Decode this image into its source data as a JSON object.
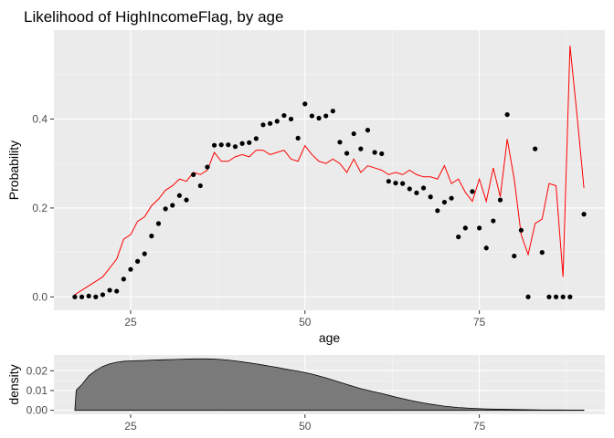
{
  "colors": {
    "panel_bg": "#ebebeb",
    "grid_major": "#ffffff",
    "grid_minor": "#f5f5f5",
    "tick": "#333333",
    "points": "#000000",
    "line": "#ff0000",
    "density_fill": "#7a7a7a",
    "density_stroke": "#000000"
  },
  "chart_data": [
    {
      "type": "scatter",
      "title": "Likelihood of HighIncomeFlag, by age",
      "xlabel": "age",
      "ylabel": "Probability",
      "xlim": [
        14,
        93
      ],
      "ylim": [
        -0.03,
        0.6
      ],
      "x_ticks": [
        25,
        50,
        75
      ],
      "y_ticks": [
        0.0,
        0.2,
        0.4
      ],
      "x_tick_labels": [
        "25",
        "50",
        "75"
      ],
      "y_tick_labels": [
        "0.0",
        "0.2",
        "0.4"
      ],
      "grid": true,
      "series": [
        {
          "kind": "points",
          "x": [
            17,
            18,
            19,
            20,
            21,
            22,
            23,
            24,
            25,
            26,
            27,
            28,
            29,
            30,
            31,
            32,
            33,
            34,
            35,
            36,
            37,
            38,
            39,
            40,
            41,
            42,
            43,
            44,
            45,
            46,
            47,
            48,
            49,
            50,
            51,
            52,
            53,
            54,
            55,
            56,
            57,
            58,
            59,
            60,
            61,
            62,
            63,
            64,
            65,
            66,
            67,
            68,
            69,
            70,
            71,
            72,
            73,
            74,
            75,
            76,
            77,
            78,
            79,
            80,
            81,
            82,
            83,
            84,
            85,
            86,
            87,
            88,
            90
          ],
          "y": [
            0.0,
            0.0,
            0.002,
            0.0,
            0.005,
            0.015,
            0.013,
            0.04,
            0.062,
            0.08,
            0.097,
            0.137,
            0.165,
            0.198,
            0.206,
            0.228,
            0.218,
            0.275,
            0.25,
            0.292,
            0.341,
            0.342,
            0.342,
            0.338,
            0.345,
            0.347,
            0.356,
            0.387,
            0.39,
            0.395,
            0.408,
            0.4,
            0.357,
            0.434,
            0.407,
            0.402,
            0.407,
            0.418,
            0.348,
            0.323,
            0.367,
            0.333,
            0.375,
            0.325,
            0.322,
            0.26,
            0.256,
            0.255,
            0.243,
            0.234,
            0.245,
            0.225,
            0.194,
            0.213,
            0.222,
            0.135,
            0.155,
            0.237,
            0.155,
            0.11,
            0.171,
            0.218,
            0.41,
            0.092,
            0.15,
            0.0,
            0.333,
            0.1,
            0.0,
            0.0,
            0.0,
            0.0,
            0.186
          ]
        },
        {
          "kind": "line",
          "x": [
            17,
            18,
            19,
            20,
            21,
            22,
            23,
            24,
            25,
            26,
            27,
            28,
            29,
            30,
            31,
            32,
            33,
            34,
            35,
            36,
            37,
            38,
            39,
            40,
            41,
            42,
            43,
            44,
            45,
            46,
            47,
            48,
            49,
            50,
            51,
            52,
            53,
            54,
            55,
            56,
            57,
            58,
            59,
            60,
            61,
            62,
            63,
            64,
            65,
            66,
            67,
            68,
            69,
            70,
            71,
            72,
            73,
            74,
            75,
            76,
            77,
            78,
            79,
            80,
            81,
            82,
            83,
            84,
            85,
            86,
            87,
            88,
            89,
            90
          ],
          "y": [
            0.005,
            0.015,
            0.025,
            0.035,
            0.045,
            0.065,
            0.085,
            0.13,
            0.14,
            0.17,
            0.18,
            0.205,
            0.22,
            0.24,
            0.25,
            0.265,
            0.26,
            0.28,
            0.275,
            0.285,
            0.325,
            0.305,
            0.305,
            0.315,
            0.32,
            0.315,
            0.33,
            0.33,
            0.32,
            0.325,
            0.33,
            0.31,
            0.305,
            0.34,
            0.32,
            0.305,
            0.3,
            0.31,
            0.3,
            0.28,
            0.31,
            0.28,
            0.295,
            0.29,
            0.285,
            0.275,
            0.28,
            0.275,
            0.285,
            0.275,
            0.27,
            0.27,
            0.265,
            0.295,
            0.255,
            0.265,
            0.235,
            0.215,
            0.265,
            0.215,
            0.29,
            0.225,
            0.355,
            0.265,
            0.14,
            0.095,
            0.165,
            0.175,
            0.255,
            0.25,
            0.045,
            0.565,
            0.41,
            0.245
          ]
        }
      ]
    },
    {
      "type": "area",
      "xlabel": "",
      "ylabel": "density",
      "xlim": [
        14,
        93
      ],
      "ylim": [
        -0.002,
        0.028
      ],
      "x_ticks": [
        25,
        50,
        75
      ],
      "y_ticks": [
        0.0,
        0.01,
        0.02
      ],
      "x_tick_labels": [
        "25",
        "50",
        "75"
      ],
      "y_tick_labels": [
        "0.00",
        "0.01",
        "0.02"
      ],
      "grid": true,
      "series": [
        {
          "x": [
            17,
            17.2,
            18,
            19,
            20,
            21,
            22,
            23,
            24,
            25,
            26,
            27,
            28,
            29,
            30,
            31,
            32,
            33,
            34,
            35,
            36,
            37,
            38,
            39,
            40,
            41,
            42,
            43,
            44,
            45,
            46,
            47,
            48,
            49,
            50,
            51,
            52,
            53,
            54,
            55,
            56,
            57,
            58,
            59,
            60,
            61,
            62,
            63,
            64,
            65,
            66,
            67,
            68,
            69,
            70,
            72,
            74,
            76,
            78,
            80,
            82,
            84,
            86,
            88,
            90
          ],
          "y": [
            0.0,
            0.0102,
            0.013,
            0.0175,
            0.0202,
            0.0222,
            0.0235,
            0.0243,
            0.0248,
            0.025,
            0.0251,
            0.0252,
            0.0254,
            0.0255,
            0.0256,
            0.0257,
            0.0258,
            0.0259,
            0.026,
            0.026,
            0.026,
            0.0259,
            0.0257,
            0.0254,
            0.025,
            0.0245,
            0.024,
            0.0235,
            0.0229,
            0.0223,
            0.0217,
            0.021,
            0.0204,
            0.0198,
            0.0191,
            0.0183,
            0.0174,
            0.0164,
            0.0153,
            0.0142,
            0.0131,
            0.012,
            0.011,
            0.0101,
            0.0093,
            0.0085,
            0.0076,
            0.0067,
            0.0059,
            0.0051,
            0.0044,
            0.0037,
            0.0031,
            0.0026,
            0.0021,
            0.0014,
            0.001,
            0.0007,
            0.0005,
            0.0004,
            0.0003,
            0.0002,
            0.0002,
            0.0001,
            0.0001
          ]
        }
      ]
    }
  ]
}
